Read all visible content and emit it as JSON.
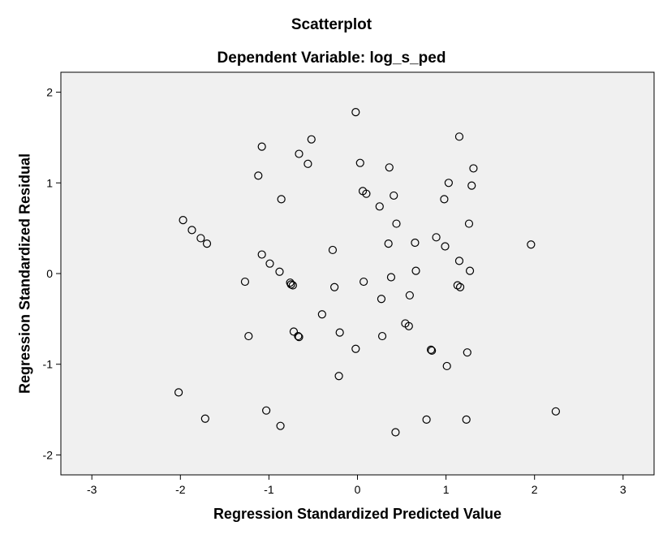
{
  "chart_data": {
    "type": "scatter",
    "title": "Scatterplot",
    "subtitle": "Dependent Variable: log_s_ped",
    "xlabel": "Regression Standardized Predicted Value",
    "ylabel": "Regression Standardized Residual",
    "xlim": [
      -3.35,
      3.35
    ],
    "ylim": [
      -2.22,
      2.22
    ],
    "x_ticks": [
      -3,
      -2,
      -1,
      0,
      1,
      2,
      3
    ],
    "y_ticks": [
      -2,
      -1,
      0,
      1,
      2
    ],
    "grid": false,
    "marker": "open-circle",
    "plot_background": "#f0f0f0",
    "point_color": "#000000",
    "points": [
      [
        -0.02,
        1.78
      ],
      [
        1.15,
        1.51
      ],
      [
        -0.52,
        1.48
      ],
      [
        -1.08,
        1.4
      ],
      [
        -0.66,
        1.32
      ],
      [
        -0.56,
        1.21
      ],
      [
        0.03,
        1.22
      ],
      [
        0.36,
        1.17
      ],
      [
        1.31,
        1.16
      ],
      [
        -1.12,
        1.08
      ],
      [
        1.03,
        1.0
      ],
      [
        1.29,
        0.97
      ],
      [
        0.06,
        0.91
      ],
      [
        0.1,
        0.88
      ],
      [
        0.41,
        0.86
      ],
      [
        -0.86,
        0.82
      ],
      [
        0.98,
        0.82
      ],
      [
        0.25,
        0.74
      ],
      [
        -1.97,
        0.59
      ],
      [
        0.44,
        0.55
      ],
      [
        1.26,
        0.55
      ],
      [
        -1.87,
        0.48
      ],
      [
        -1.77,
        0.39
      ],
      [
        0.89,
        0.4
      ],
      [
        -1.7,
        0.33
      ],
      [
        0.35,
        0.33
      ],
      [
        0.65,
        0.34
      ],
      [
        0.99,
        0.3
      ],
      [
        1.96,
        0.32
      ],
      [
        -0.28,
        0.26
      ],
      [
        -1.08,
        0.21
      ],
      [
        -0.99,
        0.11
      ],
      [
        1.15,
        0.14
      ],
      [
        -0.88,
        0.02
      ],
      [
        0.66,
        0.03
      ],
      [
        1.27,
        0.03
      ],
      [
        -1.27,
        -0.09
      ],
      [
        0.38,
        -0.04
      ],
      [
        0.07,
        -0.09
      ],
      [
        -0.76,
        -0.1
      ],
      [
        -0.75,
        -0.12
      ],
      [
        -0.73,
        -0.13
      ],
      [
        1.13,
        -0.13
      ],
      [
        1.16,
        -0.15
      ],
      [
        -0.26,
        -0.15
      ],
      [
        0.59,
        -0.24
      ],
      [
        0.27,
        -0.28
      ],
      [
        -0.4,
        -0.45
      ],
      [
        0.54,
        -0.55
      ],
      [
        0.58,
        -0.58
      ],
      [
        -0.72,
        -0.64
      ],
      [
        -0.2,
        -0.65
      ],
      [
        -1.23,
        -0.69
      ],
      [
        -0.67,
        -0.69
      ],
      [
        -0.66,
        -0.7
      ],
      [
        0.28,
        -0.69
      ],
      [
        -0.02,
        -0.83
      ],
      [
        0.83,
        -0.84
      ],
      [
        0.84,
        -0.85
      ],
      [
        1.24,
        -0.87
      ],
      [
        1.01,
        -1.02
      ],
      [
        -0.21,
        -1.13
      ],
      [
        -2.02,
        -1.31
      ],
      [
        -1.03,
        -1.51
      ],
      [
        2.24,
        -1.52
      ],
      [
        -1.72,
        -1.6
      ],
      [
        0.78,
        -1.61
      ],
      [
        1.23,
        -1.61
      ],
      [
        -0.87,
        -1.68
      ],
      [
        0.43,
        -1.75
      ]
    ]
  }
}
